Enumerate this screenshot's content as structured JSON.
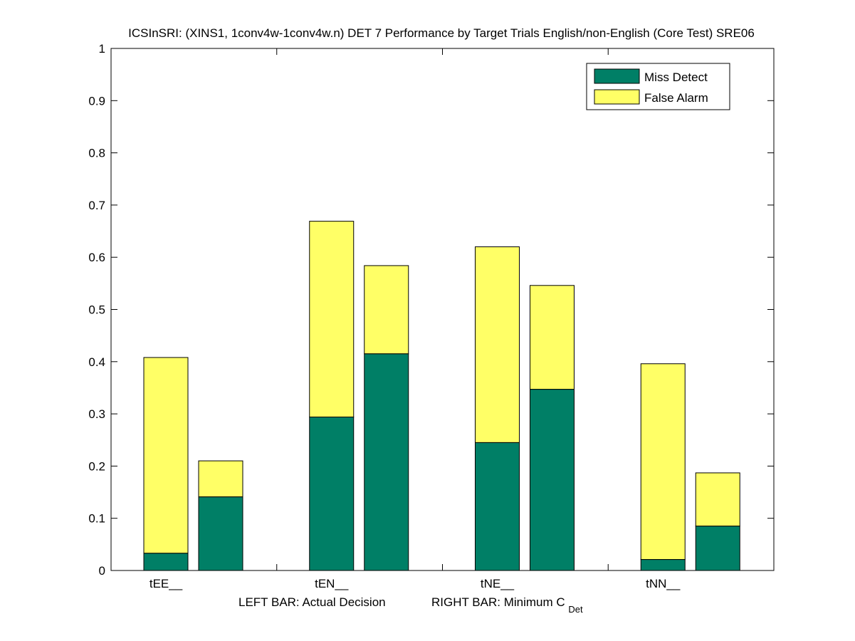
{
  "chart_data": {
    "type": "bar",
    "stacked": true,
    "title": "ICSInSRI: (XINS1, 1conv4w-1conv4w.n) DET 7 Performance by Target Trials English/non-English (Core Test) SRE06",
    "categories": [
      "tEE__",
      "tEN__",
      "tNE__",
      "tNN__"
    ],
    "xlabel": {
      "left": "LEFT BAR: Actual Decision",
      "right_main": "RIGHT BAR: Minimum C",
      "right_sub": "Det"
    },
    "ylabel": "",
    "ylim": [
      0,
      1
    ],
    "yticks": [
      "0",
      "0.1",
      "0.2",
      "0.3",
      "0.4",
      "0.5",
      "0.6",
      "0.7",
      "0.8",
      "0.9",
      "1"
    ],
    "bars": [
      {
        "category": "tEE__",
        "position": "left",
        "decision": "Actual Decision",
        "miss": 0.033,
        "total": 0.408
      },
      {
        "category": "tEE__",
        "position": "right",
        "decision": "Minimum CDet",
        "miss": 0.141,
        "total": 0.21
      },
      {
        "category": "tEN__",
        "position": "left",
        "decision": "Actual Decision",
        "miss": 0.294,
        "total": 0.669
      },
      {
        "category": "tEN__",
        "position": "right",
        "decision": "Minimum CDet",
        "miss": 0.415,
        "total": 0.584
      },
      {
        "category": "tNE__",
        "position": "left",
        "decision": "Actual Decision",
        "miss": 0.245,
        "total": 0.62
      },
      {
        "category": "tNE__",
        "position": "right",
        "decision": "Minimum CDet",
        "miss": 0.347,
        "total": 0.546
      },
      {
        "category": "tNN__",
        "position": "left",
        "decision": "Actual Decision",
        "miss": 0.021,
        "total": 0.396
      },
      {
        "category": "tNN__",
        "position": "right",
        "decision": "Minimum CDet",
        "miss": 0.085,
        "total": 0.187
      }
    ],
    "series": [
      {
        "name": "Miss Detect",
        "color": "#007F66"
      },
      {
        "name": "False Alarm",
        "color": "#FFFF66"
      }
    ],
    "legend_position": "top-right",
    "grid": false
  }
}
